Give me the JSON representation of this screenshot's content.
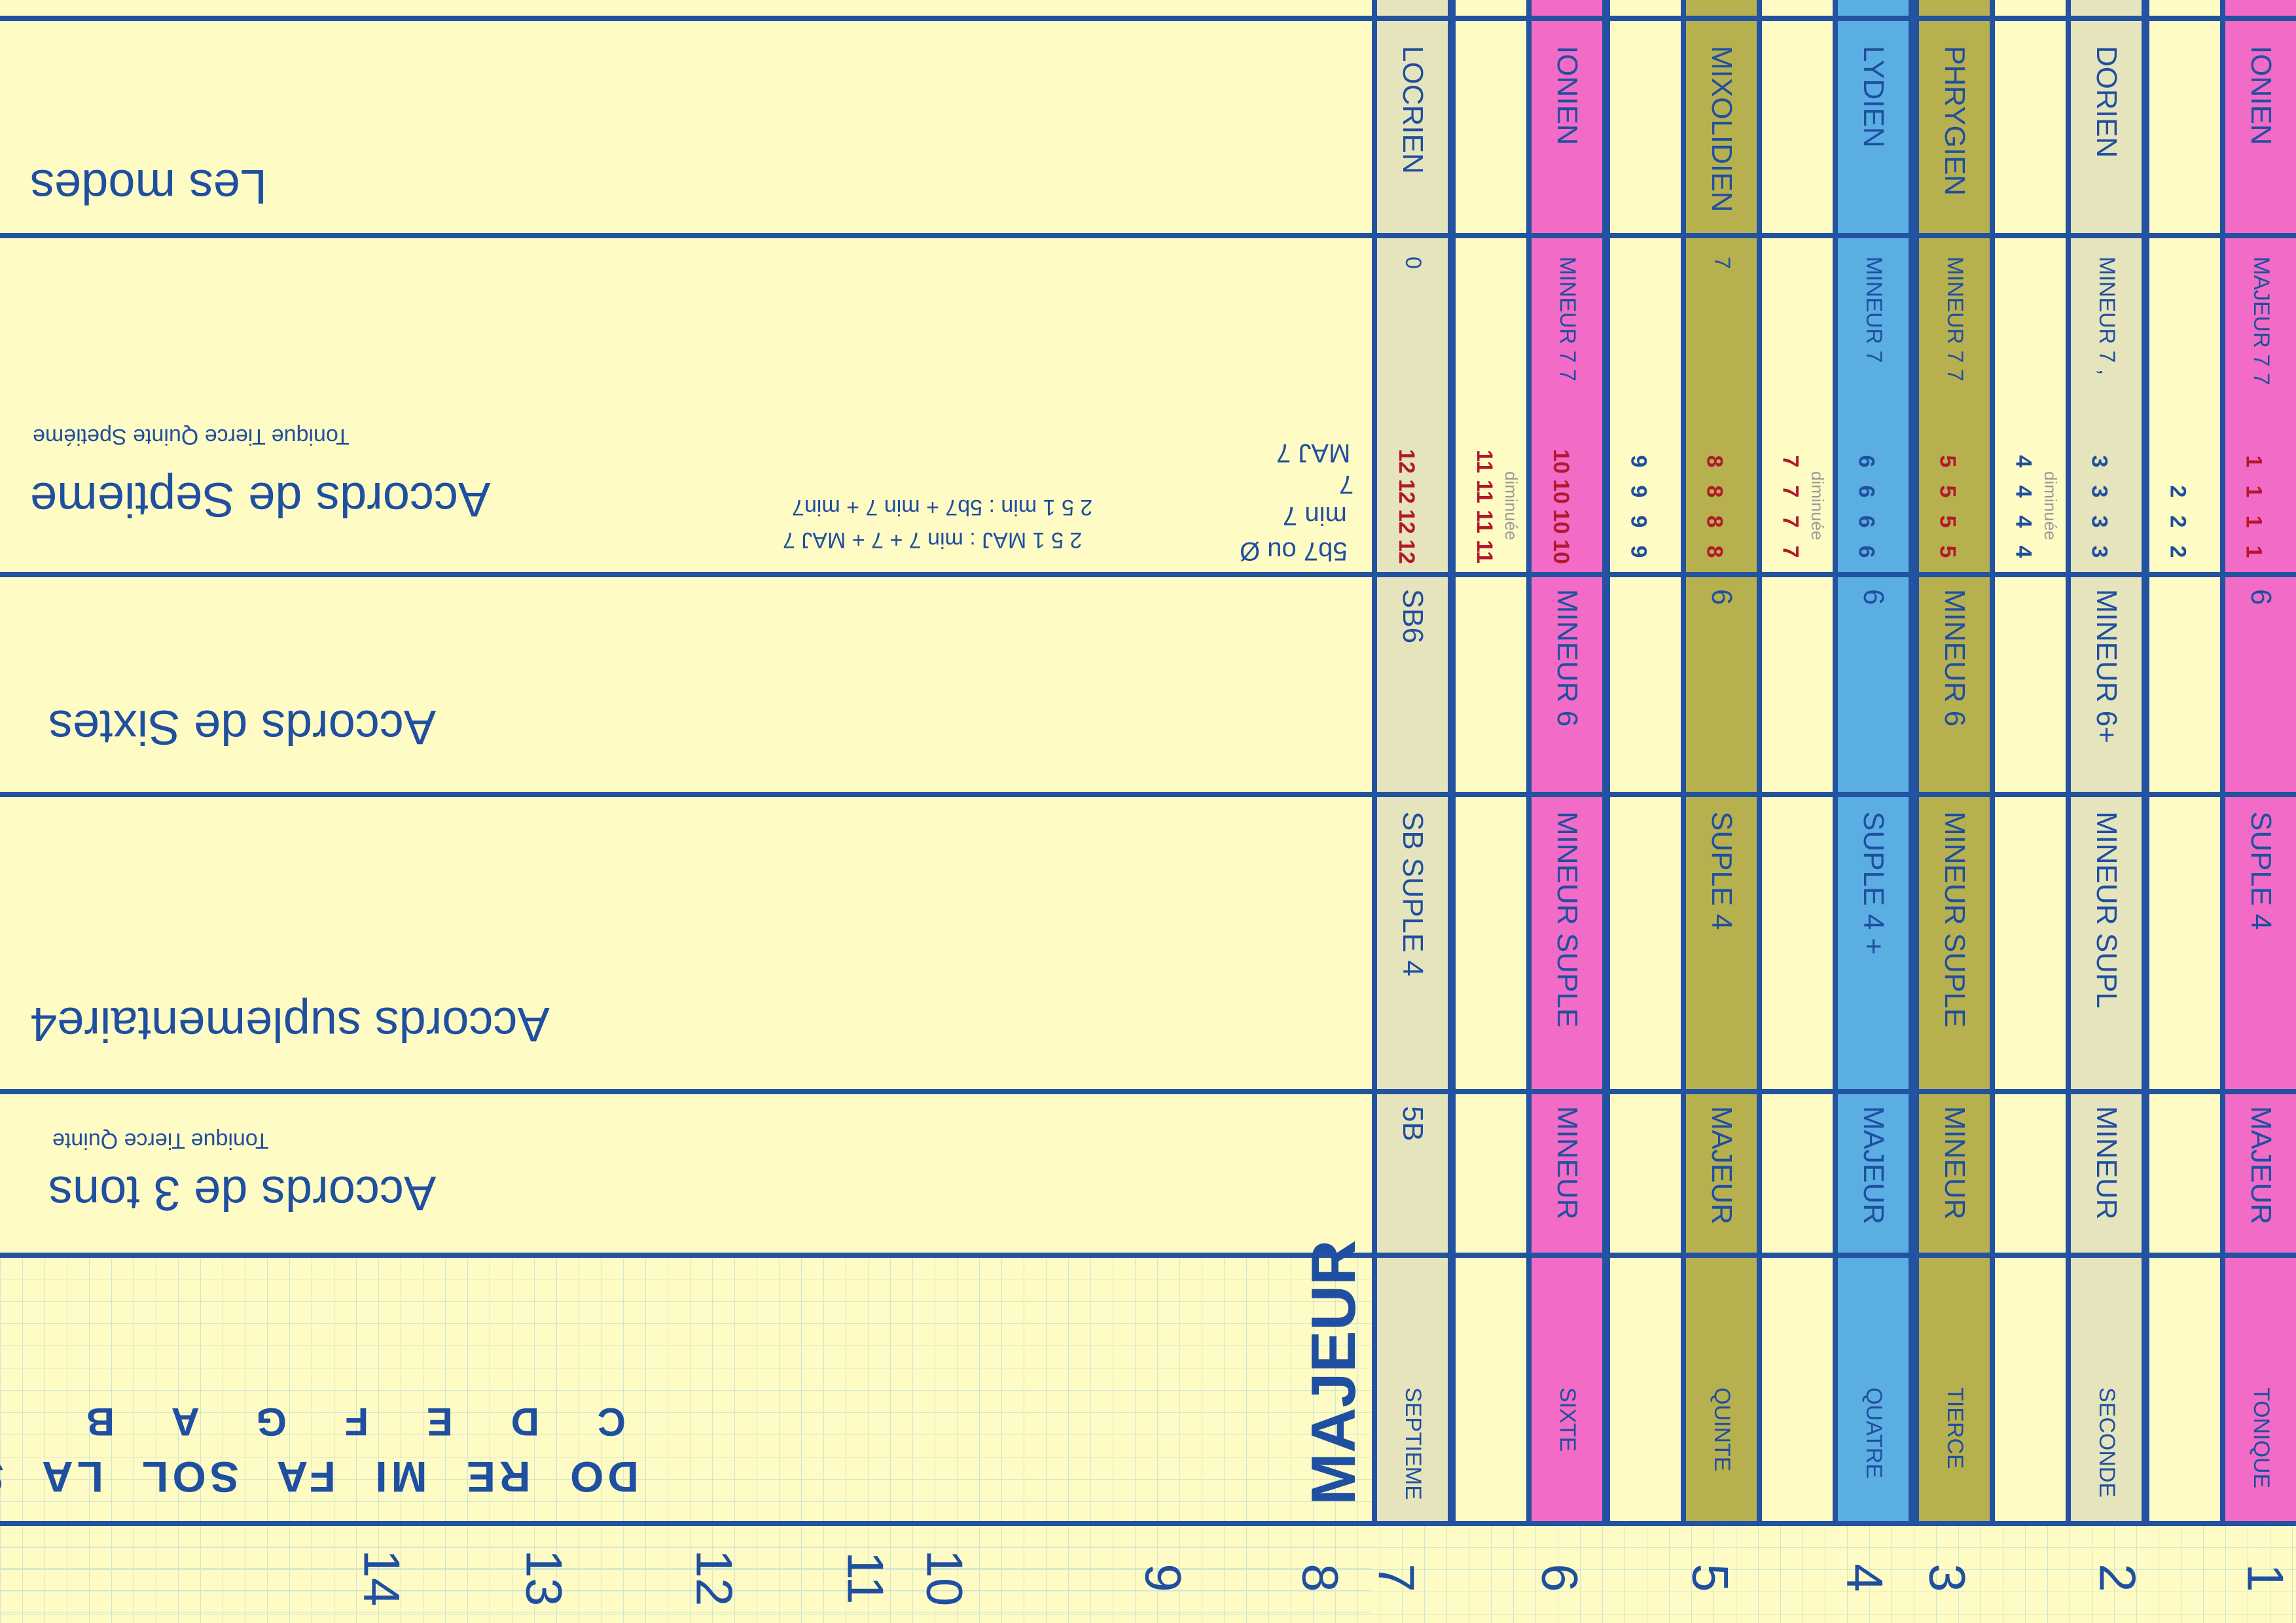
{
  "colors": {
    "background": "#fffbc4",
    "line": "#2352a0",
    "text": "#1f4fa0",
    "pink": "#f26bc6",
    "khaki": "#b6b04f",
    "blue": "#5baee2",
    "gray": "#e6e4bd",
    "red": "#b2182b"
  },
  "sections": {
    "modes_title": "Les modes",
    "septieme_title": "Accords de Septieme",
    "septieme_subtitle": "Tonique Tierce Quinte Spetiéme",
    "sixtes_title": "Accords de Sixtes",
    "suple_title": "Accords suplementaire4",
    "trois_tons_title": "Accords de 3 tons",
    "trois_tons_subtitle": "Tonique Tierce Quinte",
    "majeur_label": "MAJEUR"
  },
  "note_names": {
    "latin": [
      "DO",
      "RE",
      "MI",
      "FA",
      "SOL",
      "LA",
      "SI"
    ],
    "letters": [
      "C",
      "D",
      "E",
      "F",
      "G",
      "A",
      "B"
    ]
  },
  "chord_legend": {
    "line1": "5b7 ou Ø",
    "line2": "min 7",
    "line3": "7",
    "line4": "MAJ 7",
    "progression_maj": "2 5 1  MAJ :   min 7  +    7    +  MAJ 7",
    "progression_min": "2 5 1  min  :    5b7   +   min 7  +  min7"
  },
  "degrees": [
    {
      "num": "1",
      "mode": "IONIEN",
      "chord7": "MAJEUR 7   7",
      "sixte": "6",
      "suple": "SUPLE   4",
      "triad": "MAJEUR",
      "degree": "TONIQUE",
      "stack": [
        "1",
        "1",
        "1",
        "1"
      ],
      "red": true
    },
    {
      "num": "2",
      "stack": [
        "2",
        "2",
        "2"
      ],
      "red": false
    },
    {
      "num": "2",
      "mode": "DORIEN",
      "chord7": "MINEUR 7   ,",
      "sixte": "MINEUR 6+",
      "suple": "MINEUR SUPL",
      "triad": "MINEUR",
      "degree": "SECONDE",
      "stack": [
        "3",
        "3",
        "3",
        "3"
      ],
      "red": false
    },
    {
      "num": "",
      "stack": [
        "4",
        "4",
        "4",
        "4"
      ],
      "red": false,
      "dim": "diminuée"
    },
    {
      "num": "3",
      "mode": "PHRYGIEN",
      "chord7": "MINEUR 7   7",
      "sixte": "MINEUR 6",
      "suple": "MINEUR SUPLE",
      "triad": "MINEUR",
      "degree": "TIERCE",
      "stack": [
        "5",
        "5",
        "5",
        "5"
      ],
      "red": true
    },
    {
      "num": "4",
      "mode": "LYDIEN",
      "chord7": "MINEUR 7",
      "sixte": "6",
      "suple": "SUPLE  4  +",
      "triad": "MAJEUR",
      "degree": "QUATRE",
      "stack": [
        "6",
        "6",
        "6",
        "6"
      ],
      "red": false
    },
    {
      "num": "",
      "stack": [
        "7",
        "7",
        "7",
        "7"
      ],
      "red": true,
      "dim": "diminuée"
    },
    {
      "num": "5",
      "mode": "MIXOLIDIEN",
      "chord7": "7",
      "sixte": "6",
      "suple": "SUPLE  4",
      "triad": "MAJEUR",
      "degree": "QUINTE",
      "stack": [
        "8",
        "8",
        "8",
        "8"
      ],
      "red": true
    },
    {
      "num": "",
      "stack": [
        "9",
        "9",
        "9",
        "9"
      ],
      "red": false
    },
    {
      "num": "6",
      "mode": "IONIEN",
      "chord7": "MINEUR 7   7",
      "sixte": "MINEUR 6",
      "suple": "MINEUR SUPLE",
      "triad": "MINEUR",
      "degree": "SIXTE",
      "stack": [
        "10",
        "10",
        "10",
        "10"
      ],
      "red": true
    },
    {
      "num": "",
      "stack": [
        "11",
        "11",
        "11",
        "11"
      ],
      "red": true,
      "dim": "diminuée"
    },
    {
      "num": "7",
      "mode": "LOCRIEN",
      "chord7": "0",
      "sixte": "SB6",
      "suple": "SB SUPLE  4",
      "triad": "5B",
      "degree": "SEPTIEME",
      "stack": [
        "12",
        "12",
        "12",
        "12"
      ],
      "red": true
    }
  ],
  "bottom_numbers": [
    "1",
    "2",
    "3",
    "4",
    "5",
    "6",
    "7",
    "8",
    "9",
    "10",
    "11",
    "12",
    "13",
    "14"
  ]
}
